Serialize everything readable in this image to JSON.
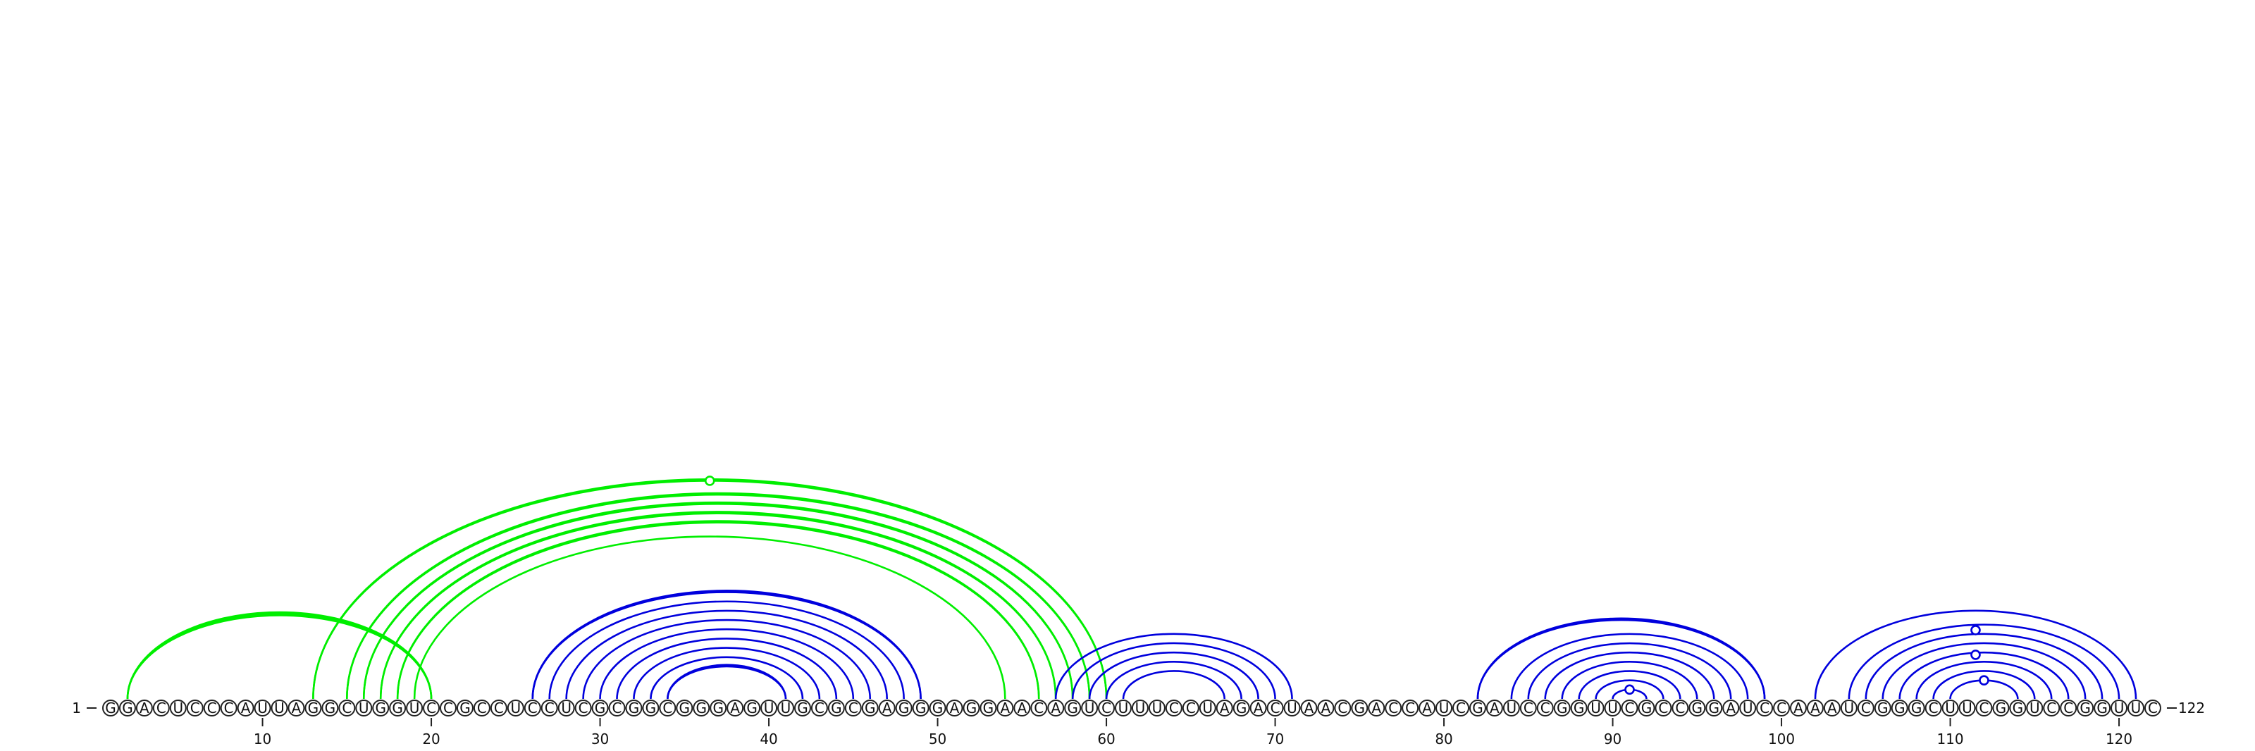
{
  "sequence": "GGACUCCCAUUAGGCUGGUCCGCCUCCUCGCGGCGGGAGUUGCGCGAGGGAGGAACAGUCUUUCCUAGACUAACGACCAUCGAUCCGGUUCGCCGGAUCCAAAUCGGGCUUCGGUCCGGUUC",
  "length": 122,
  "start_label": "1",
  "end_label": "122",
  "tick_positions": [
    10,
    20,
    30,
    40,
    50,
    60,
    70,
    80,
    90,
    100,
    110,
    120
  ],
  "tick_labels": [
    "10",
    "20",
    "30",
    "40",
    "50",
    "60",
    "70",
    "80",
    "90",
    "100",
    "110",
    "120"
  ],
  "colors": {
    "pseudoknot_helix": "#00ee00",
    "nested_helix": "#0000dd",
    "nucleotide_outline": "#222222",
    "background": "#ffffff"
  },
  "helices": [
    {
      "group": "pseudoknot",
      "pairs": [
        [
          2,
          20
        ],
        [
          2,
          20
        ],
        [
          2,
          20
        ]
      ],
      "apex_marker": false
    },
    {
      "group": "pseudoknot",
      "pairs": [
        [
          13,
          60
        ],
        [
          13,
          60
        ],
        [
          15,
          59
        ],
        [
          15,
          59
        ],
        [
          16,
          58
        ],
        [
          16,
          58
        ],
        [
          17,
          57
        ],
        [
          17,
          57
        ],
        [
          18,
          56
        ],
        [
          18,
          56
        ],
        [
          19,
          54
        ]
      ],
      "apex_marker": true
    },
    {
      "group": "nested",
      "pairs": [
        [
          26,
          49
        ],
        [
          26,
          49
        ],
        [
          27,
          48
        ],
        [
          28,
          47
        ],
        [
          29,
          46
        ],
        [
          30,
          45
        ],
        [
          31,
          44
        ],
        [
          32,
          43
        ],
        [
          33,
          42
        ],
        [
          34,
          41
        ],
        [
          34,
          41
        ]
      ],
      "apex_marker": false
    },
    {
      "group": "nested",
      "pairs": [
        [
          57,
          71
        ],
        [
          58,
          70
        ],
        [
          59,
          69
        ],
        [
          60,
          68
        ],
        [
          61,
          67
        ]
      ],
      "apex_marker": false
    },
    {
      "group": "nested",
      "pairs": [
        [
          82,
          99
        ],
        [
          82,
          99
        ],
        [
          84,
          98
        ],
        [
          85,
          97
        ],
        [
          86,
          96
        ],
        [
          87,
          95
        ],
        [
          88,
          94
        ],
        [
          89,
          93
        ],
        [
          90,
          92
        ]
      ],
      "apex_marker": true
    },
    {
      "group": "nested",
      "pairs": [
        [
          102,
          121
        ],
        [
          104,
          120
        ],
        [
          105,
          119
        ],
        [
          106,
          118
        ],
        [
          107,
          117
        ],
        [
          108,
          116
        ],
        [
          109,
          115
        ],
        [
          110,
          114
        ]
      ],
      "apex_marker": true
    }
  ],
  "extra_markers": [
    {
      "group": "nested",
      "position": 111.5,
      "height_fraction": 0.5
    },
    {
      "group": "nested",
      "position": 111.5,
      "height_fraction": 0.78
    }
  ]
}
